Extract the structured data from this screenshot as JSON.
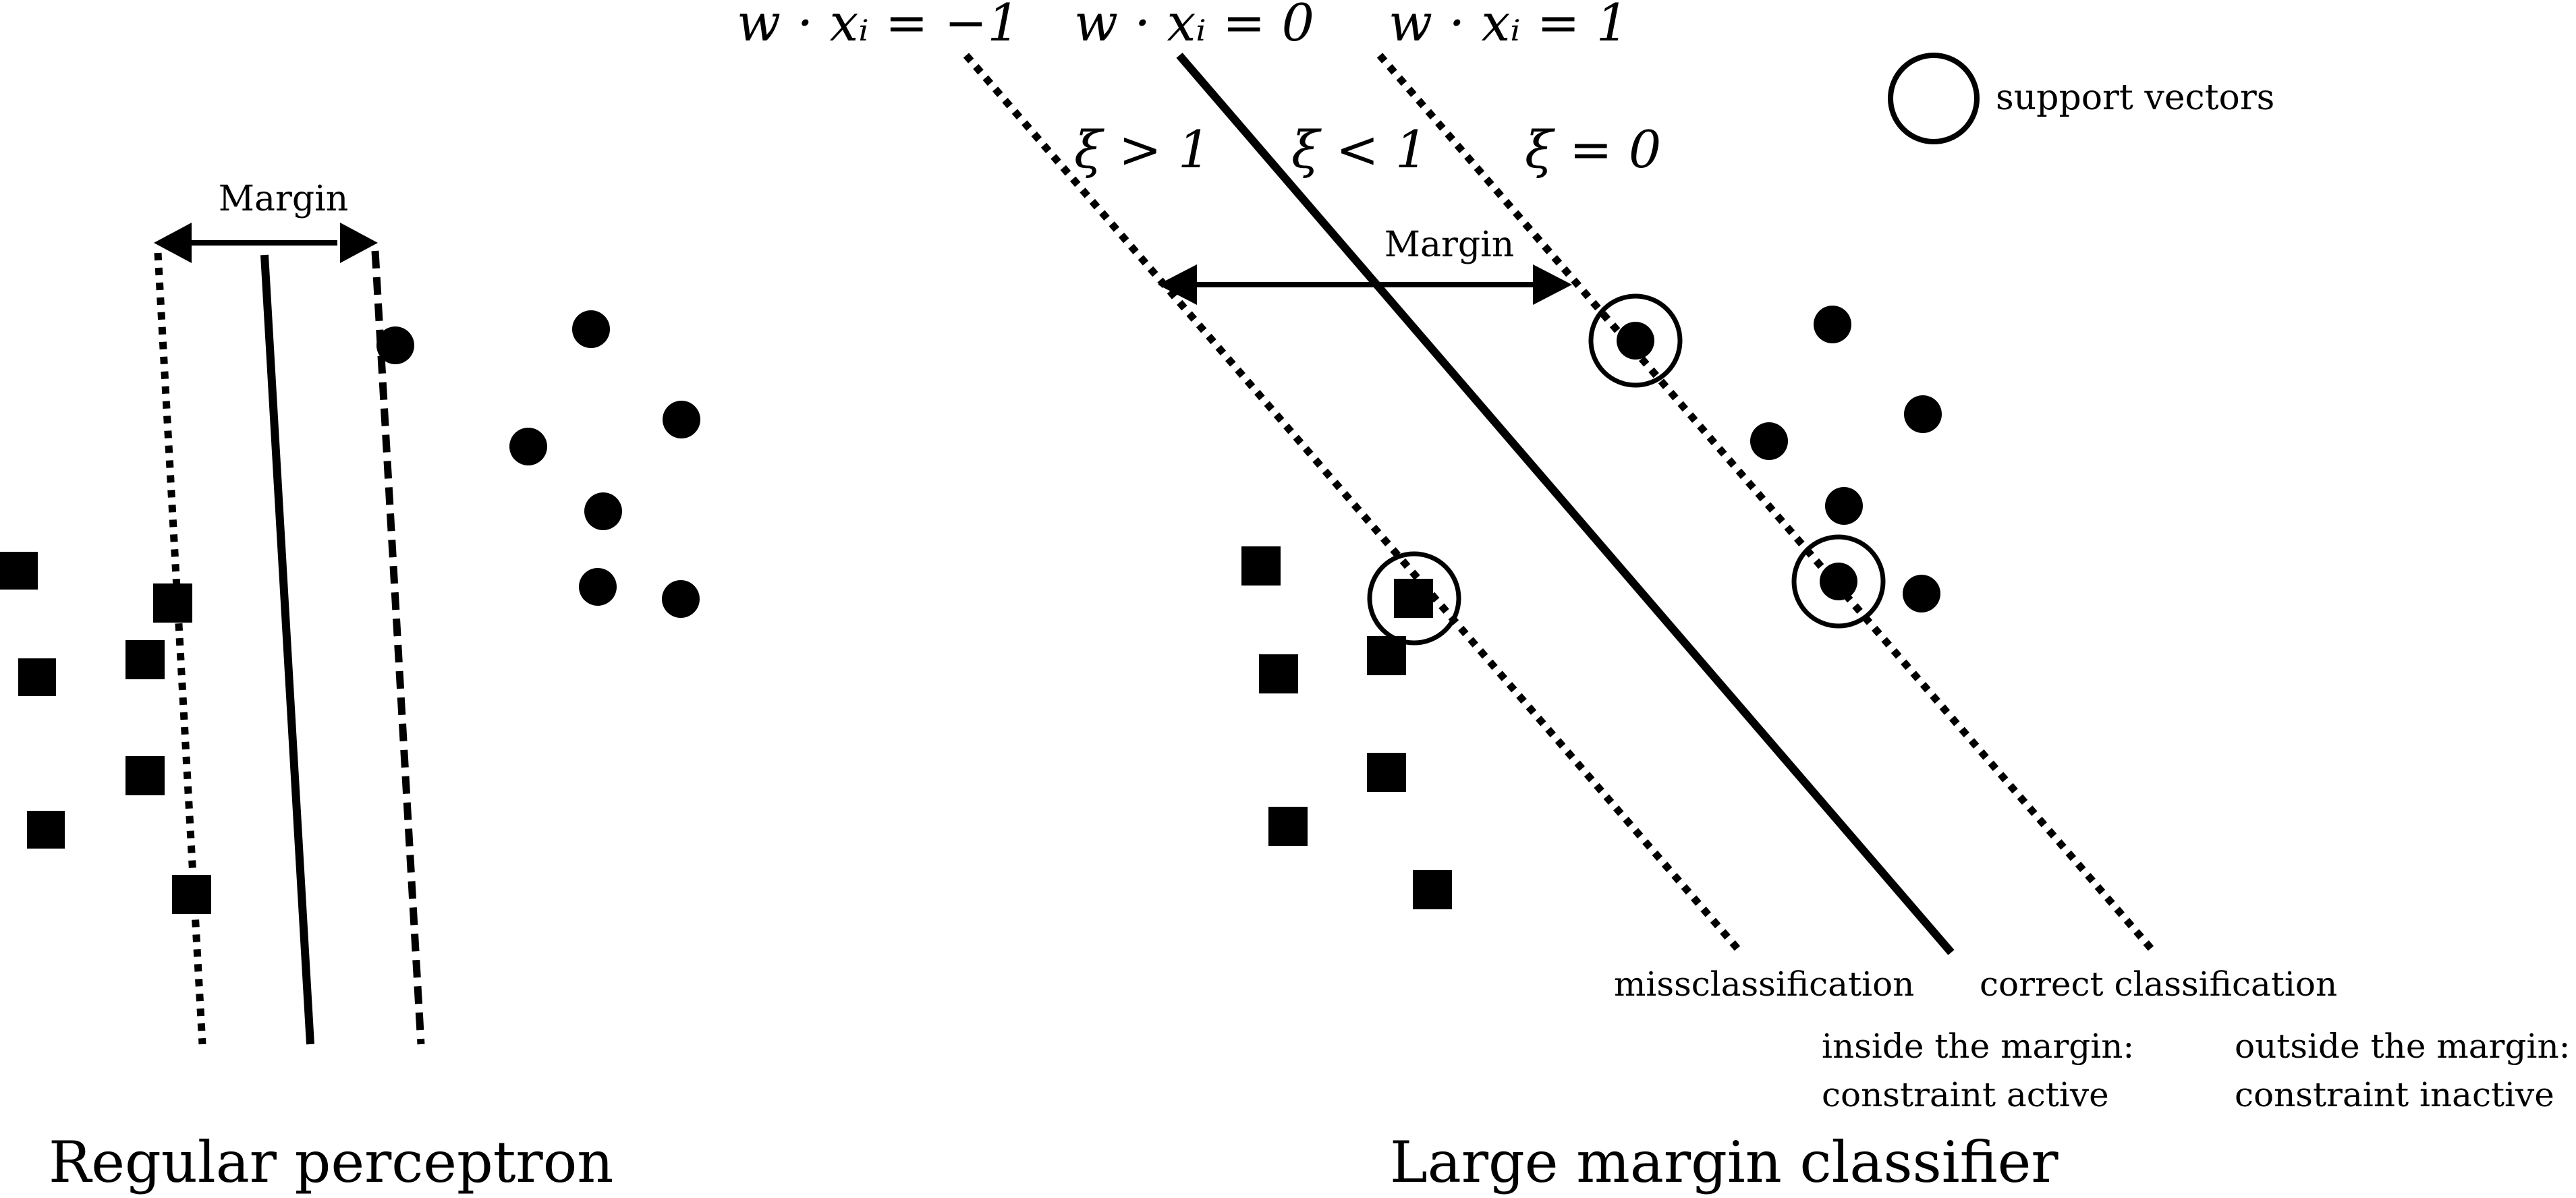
{
  "perceptron": {
    "margin_label": "Margin",
    "title": "Regular perceptron"
  },
  "large_margin": {
    "title": "Large margin classifier",
    "margin_label": "Margin",
    "eq_minus": "w · xᵢ = −1",
    "eq_zero": "w · xᵢ = 0",
    "eq_plus": "w · xᵢ = 1",
    "xi_gt": "ξ > 1",
    "xi_lt": "ξ < 1",
    "xi_eq": "ξ = 0",
    "legend_label": "support vectors",
    "missclassification": "missclassification",
    "correct_classification": "correct classification",
    "inside_line1": "inside the margin:",
    "inside_line2": "constraint active",
    "outside_line1": "outside the margin:",
    "outside_line2": "constraint inactive"
  }
}
